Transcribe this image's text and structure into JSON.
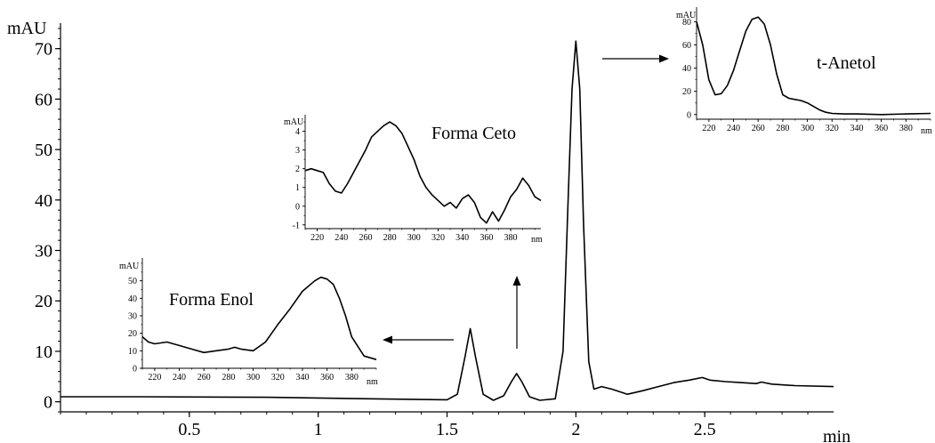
{
  "chart_data": [
    {
      "type": "line",
      "ylabel": "mAU",
      "xlabel": "min",
      "xlim": [
        0,
        3.0
      ],
      "ylim": [
        -2,
        74
      ],
      "xticks": [
        0.5,
        1,
        1.5,
        2,
        2.5
      ],
      "yticks": [
        0,
        10,
        20,
        30,
        40,
        50,
        60,
        70
      ],
      "peaks": [
        {
          "x": 1.59,
          "y": 14.5
        },
        {
          "x": 1.77,
          "y": 5.6
        },
        {
          "x": 2.0,
          "y": 71.5
        }
      ],
      "series": [
        {
          "x": [
            0,
            0.3,
            0.8,
            1.2,
            1.5,
            1.54,
            1.57,
            1.59,
            1.61,
            1.64,
            1.68,
            1.72,
            1.75,
            1.77,
            1.79,
            1.82,
            1.86,
            1.92,
            1.95,
            1.97,
            1.985,
            2.0,
            2.015,
            2.03,
            2.05,
            2.07,
            2.1,
            2.14,
            2.2,
            2.26,
            2.32,
            2.38,
            2.44,
            2.49,
            2.52,
            2.58,
            2.64,
            2.7,
            2.72,
            2.76,
            2.85,
            3.0
          ],
          "y": [
            1.0,
            1.0,
            0.9,
            0.6,
            0.4,
            1.5,
            9.0,
            14.5,
            9.0,
            1.5,
            0.3,
            1.2,
            4.0,
            5.6,
            4.0,
            1.0,
            0.3,
            0.6,
            10.0,
            40.0,
            62.0,
            71.5,
            62.0,
            35.0,
            8.0,
            2.5,
            3.0,
            2.5,
            1.5,
            2.2,
            3.0,
            3.8,
            4.3,
            4.8,
            4.3,
            4.0,
            3.8,
            3.6,
            3.9,
            3.5,
            3.2,
            3.0
          ]
        }
      ]
    },
    {
      "type": "line",
      "title": "Forma Enol",
      "ylabel": "mAU",
      "xlabel": "nm",
      "xlim": [
        210,
        400
      ],
      "ylim": [
        0,
        60
      ],
      "xticks": [
        220,
        240,
        260,
        280,
        300,
        320,
        340,
        360,
        380
      ],
      "yticks": [
        0,
        10,
        20,
        30,
        40,
        50
      ],
      "series": [
        {
          "x": [
            210,
            215,
            220,
            230,
            240,
            250,
            260,
            270,
            280,
            285,
            290,
            300,
            310,
            320,
            330,
            340,
            350,
            355,
            360,
            365,
            370,
            375,
            380,
            390,
            400
          ],
          "y": [
            18,
            15,
            14,
            15,
            13,
            11,
            9,
            10,
            11,
            12,
            11,
            10,
            15,
            25,
            34,
            44,
            50,
            52,
            51,
            48,
            40,
            30,
            18,
            7,
            5
          ]
        }
      ]
    },
    {
      "type": "line",
      "title": "Forma Ceto",
      "ylabel": "mAU",
      "xlabel": "nm",
      "xlim": [
        210,
        405
      ],
      "ylim": [
        -1.2,
        4.6
      ],
      "xticks": [
        220,
        240,
        260,
        280,
        300,
        320,
        340,
        360,
        380
      ],
      "yticks": [
        -1,
        0,
        1,
        2,
        3,
        4
      ],
      "series": [
        {
          "x": [
            210,
            215,
            220,
            225,
            230,
            235,
            240,
            245,
            250,
            255,
            260,
            265,
            270,
            275,
            280,
            285,
            290,
            295,
            300,
            305,
            310,
            315,
            320,
            325,
            330,
            335,
            340,
            345,
            350,
            355,
            360,
            365,
            370,
            375,
            380,
            385,
            390,
            395,
            400,
            405
          ],
          "y": [
            1.9,
            2.0,
            1.9,
            1.8,
            1.2,
            0.8,
            0.7,
            1.2,
            1.8,
            2.4,
            3.0,
            3.7,
            4.0,
            4.3,
            4.5,
            4.3,
            3.9,
            3.2,
            2.5,
            1.6,
            1.0,
            0.6,
            0.3,
            0.0,
            0.2,
            -0.1,
            0.4,
            0.6,
            0.2,
            -0.6,
            -0.9,
            -0.3,
            -0.8,
            -0.2,
            0.5,
            0.9,
            1.5,
            1.1,
            0.5,
            0.3
          ]
        }
      ]
    },
    {
      "type": "line",
      "title": "t-Anetol",
      "ylabel": "mAU",
      "xlabel": "nm",
      "xlim": [
        210,
        400
      ],
      "ylim": [
        -4,
        88
      ],
      "xticks": [
        220,
        240,
        260,
        280,
        300,
        320,
        340,
        360,
        380
      ],
      "yticks": [
        0,
        20,
        40,
        60,
        80
      ],
      "series": [
        {
          "x": [
            210,
            215,
            220,
            225,
            230,
            235,
            240,
            245,
            250,
            255,
            260,
            265,
            270,
            275,
            280,
            285,
            290,
            295,
            300,
            305,
            310,
            315,
            320,
            330,
            340,
            360,
            380,
            400
          ],
          "y": [
            80,
            60,
            30,
            17,
            18,
            25,
            38,
            55,
            72,
            82,
            84,
            78,
            60,
            35,
            17,
            14,
            13,
            12,
            10,
            7,
            4,
            2,
            1,
            0.5,
            0.5,
            0,
            0.5,
            1
          ]
        }
      ]
    }
  ]
}
